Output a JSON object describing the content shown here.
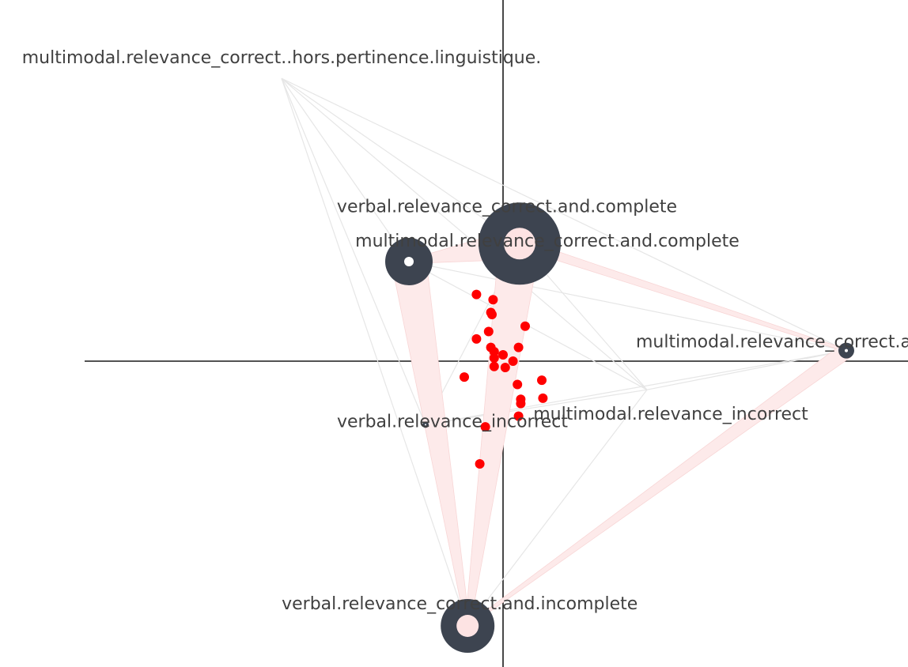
{
  "chart_data": {
    "type": "scatter",
    "title": "",
    "xlabel": "",
    "ylabel": "",
    "xlim": [
      -4.2,
      4.0
    ],
    "ylim": [
      -3.0,
      3.5
    ],
    "grid": false,
    "legend": "none",
    "colors": {
      "node": "#3d4450",
      "node_inner": "#fde3e3",
      "individual": "#ff0000",
      "edge_light": "#e6e6e6",
      "edge_pink": "#fdeaea",
      "axis": "#1a1a1a",
      "label": "#404040"
    },
    "categories": [
      {
        "id": "mm_hors",
        "label": "multimodal.relevance_correct..hors.pertinence.linguistique.",
        "x": -2.0,
        "y": 2.67,
        "size": 0,
        "inner": 0
      },
      {
        "id": "vb_cc",
        "label": "verbal.relevance_correct.and.complete",
        "x": 0.15,
        "y": 1.11,
        "size": 52,
        "inner": 20
      },
      {
        "id": "mm_cc",
        "label": "multimodal.relevance_correct.and.complete",
        "x": -0.85,
        "y": 0.94,
        "size": 30,
        "inner": 6
      },
      {
        "id": "mm_cci",
        "label": "multimodal.relevance_correct.and.incomplete",
        "x": 3.1,
        "y": 0.1,
        "size": 10,
        "inner": 2
      },
      {
        "id": "mm_inc",
        "label": "multimodal.relevance_incorrect",
        "x": 1.3,
        "y": -0.27,
        "size": 0,
        "inner": 0
      },
      {
        "id": "vb_inc",
        "label": "verbal.relevance_incorrect",
        "x": -0.7,
        "y": -0.6,
        "size": 4,
        "inner": 1
      },
      {
        "id": "vb_cci",
        "label": "verbal.relevance_correct.and.incomplete",
        "x": -0.32,
        "y": -2.5,
        "size": 34,
        "inner": 14
      }
    ],
    "individuals": [
      {
        "x": -0.24,
        "y": 0.63
      },
      {
        "x": -0.09,
        "y": 0.58
      },
      {
        "x": -0.11,
        "y": 0.46
      },
      {
        "x": -0.1,
        "y": 0.44
      },
      {
        "x": 0.2,
        "y": 0.33
      },
      {
        "x": -0.13,
        "y": 0.28
      },
      {
        "x": -0.24,
        "y": 0.21
      },
      {
        "x": -0.11,
        "y": 0.13
      },
      {
        "x": 0.14,
        "y": 0.13
      },
      {
        "x": -0.08,
        "y": 0.09
      },
      {
        "x": 0.0,
        "y": 0.06
      },
      {
        "x": -0.08,
        "y": 0.03
      },
      {
        "x": 0.09,
        "y": 0.0
      },
      {
        "x": -0.08,
        "y": -0.05
      },
      {
        "x": 0.02,
        "y": -0.06
      },
      {
        "x": -0.35,
        "y": -0.15
      },
      {
        "x": 0.35,
        "y": -0.18
      },
      {
        "x": 0.13,
        "y": -0.22
      },
      {
        "x": 0.36,
        "y": -0.35
      },
      {
        "x": 0.16,
        "y": -0.36
      },
      {
        "x": 0.16,
        "y": -0.4
      },
      {
        "x": 0.14,
        "y": -0.52
      },
      {
        "x": -0.16,
        "y": -0.62
      },
      {
        "x": -0.21,
        "y": -0.97
      }
    ],
    "links_light": [
      [
        "mm_hors",
        "vb_cc"
      ],
      [
        "mm_hors",
        "mm_cc"
      ],
      [
        "mm_hors",
        "mm_cci"
      ],
      [
        "mm_hors",
        "mm_inc"
      ],
      [
        "mm_hors",
        "vb_inc"
      ],
      [
        "mm_hors",
        "vb_cci"
      ],
      [
        "vb_cc",
        "mm_inc"
      ],
      [
        "vb_cc",
        "vb_inc"
      ],
      [
        "mm_cc",
        "mm_cci"
      ],
      [
        "mm_cc",
        "mm_inc"
      ],
      [
        "mm_cc",
        "vb_inc"
      ],
      [
        "mm_cci",
        "vb_inc"
      ],
      [
        "mm_cci",
        "mm_inc"
      ],
      [
        "mm_inc",
        "vb_cci"
      ],
      [
        "mm_inc",
        "vb_inc"
      ],
      [
        "vb_inc",
        "vb_cci"
      ]
    ],
    "links_weighted": [
      {
        "a": "vb_cc",
        "b": "vb_cci",
        "w": 26
      },
      {
        "a": "mm_cc",
        "b": "vb_cci",
        "w": 22
      },
      {
        "a": "vb_cc",
        "b": "mm_cc",
        "w": 20
      },
      {
        "a": "vb_cc",
        "b": "mm_cci",
        "w": 6
      },
      {
        "a": "mm_cci",
        "b": "vb_cci",
        "w": 10
      }
    ]
  }
}
